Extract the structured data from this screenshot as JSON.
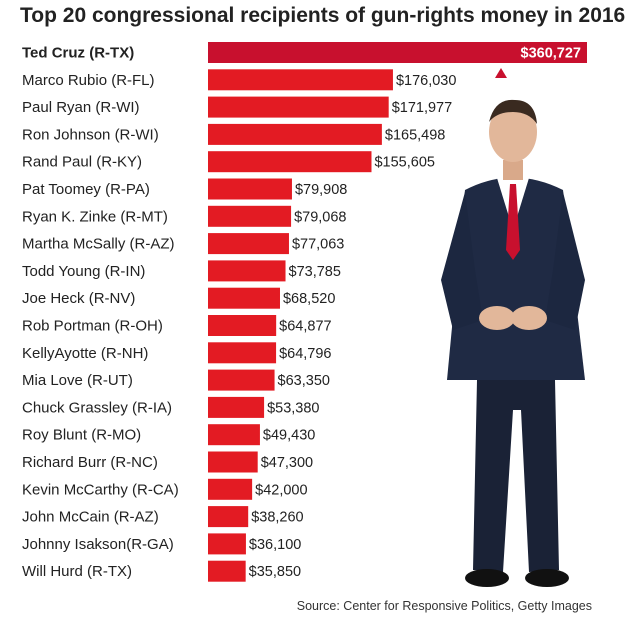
{
  "chart_data": {
    "type": "bar",
    "orientation": "horizontal",
    "title": "Top 20 congressional recipients of gun-rights money in 2016",
    "xlabel": "",
    "ylabel": "",
    "xlim": [
      0,
      360727
    ],
    "categories": [
      "Ted Cruz (R-TX)",
      "Marco Rubio (R-FL)",
      "Paul Ryan (R-WI)",
      "Ron Johnson (R-WI)",
      "Rand Paul (R-KY)",
      "Pat Toomey (R-PA)",
      "Ryan K. Zinke (R-MT)",
      "Martha McSally (R-AZ)",
      "Todd Young (R-IN)",
      "Joe Heck (R-NV)",
      "Rob Portman (R-OH)",
      "KellyAyotte (R-NH)",
      "Mia Love (R-UT)",
      "Chuck Grassley (R-IA)",
      "Roy Blunt (R-MO)",
      "Richard Burr (R-NC)",
      "Kevin McCarthy (R-CA)",
      "John McCain (R-AZ)",
      "Johnny  Isakson(R-GA)",
      "Will Hurd (R-TX)"
    ],
    "values": [
      360727,
      176030,
      171977,
      165498,
      155605,
      79908,
      79068,
      77063,
      73785,
      68520,
      64877,
      64796,
      63350,
      53380,
      49430,
      47300,
      42000,
      38260,
      36100,
      35850
    ],
    "value_labels": [
      "$360,727",
      "$176,030",
      "$171,977",
      "$165,498",
      "$155,605",
      "$79,908",
      "$79,068",
      "$77,063",
      "$73,785",
      "$68,520",
      "$64,877",
      "$64,796",
      "$63,350",
      "$53,380",
      "$49,430",
      "$47,300",
      "$42,000",
      "$38,260",
      "$36,100",
      "$35,850"
    ],
    "highlight_index": 0,
    "colors": {
      "bar": "#e31b23",
      "bar_highlight": "#c8102e",
      "text": "#222222"
    }
  },
  "source": "Source: Center for Responsive Politics, Getty Images",
  "photo": {
    "icon": "person-photo-icon"
  }
}
